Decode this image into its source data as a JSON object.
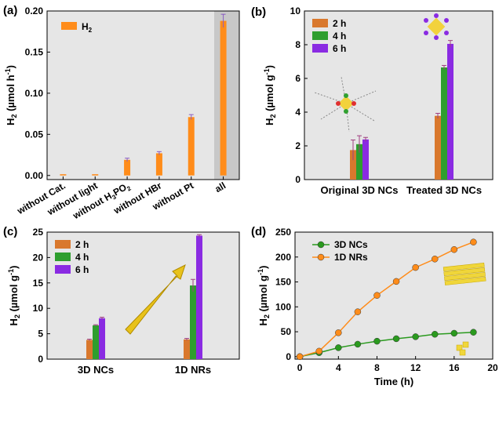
{
  "chart_data": [
    {
      "panel": "(a)",
      "type": "bar",
      "ylabel_main": "H",
      "ylabel_sub": "2",
      "ylabel_rest": " (µmol h",
      "ylabel_sup": "-1",
      "ylabel_close": ")",
      "ylim": [
        -0.005,
        0.2
      ],
      "yticks": [
        "0.00",
        "0.05",
        "0.10",
        "0.15",
        "0.20"
      ],
      "ytick_values": [
        0,
        0.05,
        0.1,
        0.15,
        0.2
      ],
      "categories": [
        "without Cat.",
        "without light",
        "without H3PO2",
        "without HBr",
        "without Pt",
        "all"
      ],
      "category_labels": [
        {
          "main": "without Cat."
        },
        {
          "main": "without light"
        },
        {
          "main": "without H",
          "sub": "3",
          "rest": "PO",
          "sub2": "2"
        },
        {
          "main": "without HBr"
        },
        {
          "main": "without Pt"
        },
        {
          "main": "all"
        }
      ],
      "values": [
        0.0,
        0.0,
        0.019,
        0.027,
        0.071,
        0.188
      ],
      "errors": [
        0.0,
        0.0,
        0.002,
        0.002,
        0.003,
        0.008
      ],
      "highlight_category": "all",
      "legend": {
        "label_main": "H",
        "label_sub": "2",
        "position": "top-left"
      },
      "colors": {
        "bar": "#ff8c1a",
        "highlight": "#c8c8c8",
        "error": "#8a5cc2"
      }
    },
    {
      "panel": "(b)",
      "type": "bar",
      "ylabel_main": "H",
      "ylabel_sub": "2",
      "ylabel_rest": " (µmol g",
      "ylabel_sup": "-1",
      "ylabel_close": ")",
      "ylim": [
        0,
        10
      ],
      "yticks": [
        "0",
        "2",
        "4",
        "6",
        "8",
        "10"
      ],
      "ytick_values": [
        0,
        2,
        4,
        6,
        8,
        10
      ],
      "categories": [
        "Original 3D NCs",
        "Treated 3D NCs"
      ],
      "series": [
        {
          "name": "2 h",
          "values": [
            1.75,
            3.78
          ],
          "errors": [
            0.6,
            0.15
          ],
          "color": "#d9782d"
        },
        {
          "name": "4 h",
          "values": [
            2.1,
            6.65
          ],
          "errors": [
            0.5,
            0.12
          ],
          "color": "#2e9e2e"
        },
        {
          "name": "6 h",
          "values": [
            2.38,
            8.05
          ],
          "errors": [
            0.12,
            0.2
          ],
          "color": "#8a2be2"
        }
      ],
      "legend": {
        "position": "top-left"
      }
    },
    {
      "panel": "(c)",
      "type": "bar",
      "ylabel_main": "H",
      "ylabel_sub": "2",
      "ylabel_rest": " (µmol g",
      "ylabel_sup": "-1",
      "ylabel_close": ")",
      "ylim": [
        0,
        25
      ],
      "yticks": [
        "0",
        "5",
        "10",
        "15",
        "20",
        "25"
      ],
      "ytick_values": [
        0,
        5,
        10,
        15,
        20,
        25
      ],
      "categories": [
        "3D NCs",
        "1D NRs"
      ],
      "series": [
        {
          "name": "2 h",
          "values": [
            3.78,
            3.88
          ],
          "errors": [
            0.15,
            0.2
          ],
          "color": "#d9782d"
        },
        {
          "name": "4 h",
          "values": [
            6.65,
            14.5
          ],
          "errors": [
            0.12,
            1.2
          ],
          "color": "#2e9e2e"
        },
        {
          "name": "6 h",
          "values": [
            8.05,
            24.3
          ],
          "errors": [
            0.2,
            0.2
          ],
          "color": "#8a2be2"
        }
      ],
      "legend": {
        "position": "top-left"
      }
    },
    {
      "panel": "(d)",
      "type": "line",
      "ylabel_main": "H",
      "ylabel_sub": "2",
      "ylabel_rest": " (µmol g",
      "ylabel_sup": "-1",
      "ylabel_close": ")",
      "xlabel": "Time (h)",
      "xlim": [
        -0.5,
        20
      ],
      "ylim": [
        -5,
        250
      ],
      "xticks": [
        "0",
        "4",
        "8",
        "12",
        "16",
        "20"
      ],
      "xtick_values": [
        0,
        4,
        8,
        12,
        16,
        20
      ],
      "yticks": [
        "0",
        "50",
        "100",
        "150",
        "200",
        "250"
      ],
      "ytick_values": [
        0,
        50,
        100,
        150,
        200,
        250
      ],
      "series": [
        {
          "name": "3D NCs",
          "color": "#2a9a1e",
          "x": [
            0,
            2,
            4,
            6,
            8,
            10,
            12,
            14,
            16,
            18
          ],
          "y": [
            0,
            8,
            18,
            25,
            31,
            36,
            40,
            45,
            47,
            49
          ]
        },
        {
          "name": "1D NRs",
          "color": "#ff8c1a",
          "x": [
            0,
            2,
            4,
            6,
            8,
            10,
            12,
            14,
            16,
            18
          ],
          "y": [
            0,
            11,
            48,
            90,
            123,
            151,
            179,
            196,
            215,
            230
          ]
        }
      ],
      "legend": {
        "position": "top-left"
      }
    }
  ]
}
